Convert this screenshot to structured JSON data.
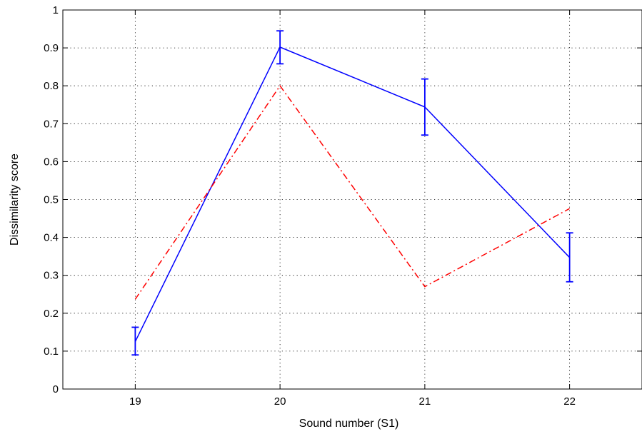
{
  "chart_data": {
    "type": "line",
    "title": "",
    "xlabel": "Sound number (S1)",
    "ylabel": "Dissimilarity score",
    "xlim": [
      18.5,
      22.5
    ],
    "ylim": [
      0,
      1
    ],
    "x_ticks": [
      19,
      20,
      21,
      22
    ],
    "x_tick_labels": [
      "19",
      "20",
      "21",
      "22"
    ],
    "y_ticks": [
      0,
      0.1,
      0.2,
      0.3,
      0.4,
      0.5,
      0.6,
      0.7,
      0.8,
      0.9,
      1
    ],
    "y_tick_labels": [
      "0",
      "0.1",
      "0.2",
      "0.3",
      "0.4",
      "0.5",
      "0.6",
      "0.7",
      "0.8",
      "0.9",
      "1"
    ],
    "grid": true,
    "series": [
      {
        "style": "solid",
        "color": "#0000ff",
        "x": [
          19,
          20,
          21,
          22
        ],
        "y": [
          0.125,
          0.902,
          0.744,
          0.347
        ],
        "error_low": [
          0.09,
          0.858,
          0.67,
          0.283
        ],
        "error_high": [
          0.163,
          0.945,
          0.818,
          0.412
        ]
      },
      {
        "style": "dash-dot",
        "color": "#ff0000",
        "x": [
          19,
          20,
          21,
          22
        ],
        "y": [
          0.237,
          0.8,
          0.27,
          0.476
        ]
      }
    ]
  }
}
